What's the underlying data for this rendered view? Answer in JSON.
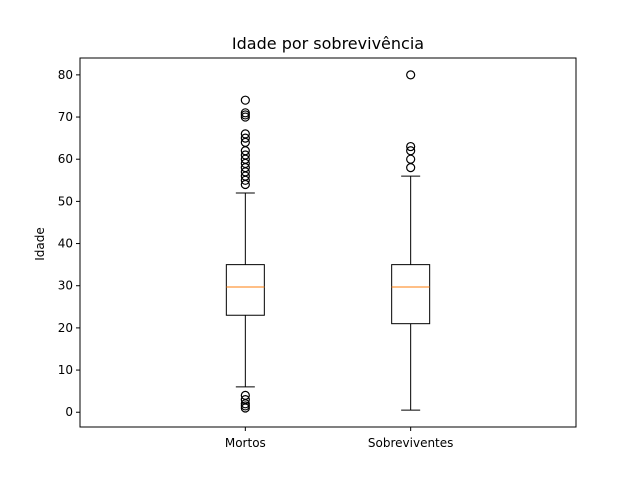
{
  "chart_data": {
    "type": "boxplot",
    "title": "Idade por sobrevivência",
    "xlabel": "",
    "ylabel": "Idade",
    "ylim": [
      -3.5,
      84.0
    ],
    "yticks": [
      0,
      10,
      20,
      30,
      40,
      50,
      60,
      70,
      80
    ],
    "categories": [
      "Mortos",
      "Sobreviventes"
    ],
    "boxes": [
      {
        "name": "Mortos",
        "whisker_low": 6,
        "q1": 23,
        "median": 29.7,
        "q3": 35,
        "whisker_high": 52,
        "outliers": [
          1,
          1.5,
          2,
          3,
          4,
          54,
          55,
          56,
          57,
          58,
          59,
          60,
          61,
          62,
          64,
          65,
          66,
          70,
          70.5,
          71,
          74
        ]
      },
      {
        "name": "Sobreviventes",
        "whisker_low": 0.5,
        "q1": 21,
        "median": 29.7,
        "q3": 35,
        "whisker_high": 56,
        "outliers": [
          58,
          60,
          62,
          63,
          80
        ]
      }
    ],
    "colors": {
      "box": "#000000",
      "median": "#ff7f0e",
      "frame": "#000000"
    },
    "grid": false,
    "legend": "none"
  }
}
